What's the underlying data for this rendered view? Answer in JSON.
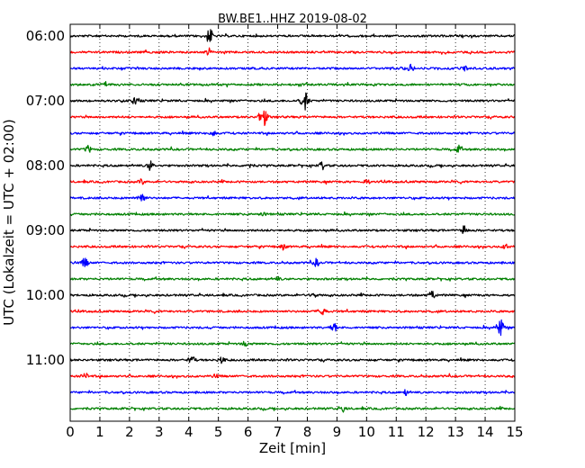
{
  "chart_data": {
    "type": "line",
    "title": "BW.BE1..HHZ 2019-08-02",
    "xlabel": "Zeit  [min]",
    "ylabel": "UTC (Lokalzeit = UTC + 02:00)",
    "xlim": [
      0,
      15
    ],
    "x_ticks": [
      0,
      1,
      2,
      3,
      4,
      5,
      6,
      7,
      8,
      9,
      10,
      11,
      12,
      13,
      14,
      15
    ],
    "y_ticks": [
      "06:00",
      "07:00",
      "08:00",
      "09:00",
      "10:00",
      "11:00"
    ],
    "grid": "vertical-dotted",
    "trace_colors": [
      "#000000",
      "#ff0000",
      "#0000ff",
      "#008000"
    ],
    "traces": [
      {
        "label": "06:00",
        "events": [
          {
            "x": 4.7,
            "amp": 8
          }
        ]
      },
      {
        "label": "06:15",
        "events": [
          {
            "x": 4.7,
            "amp": 4
          }
        ]
      },
      {
        "label": "06:30",
        "events": [
          {
            "x": 11.5,
            "amp": 4
          },
          {
            "x": 13.3,
            "amp": 3
          }
        ]
      },
      {
        "label": "06:45",
        "events": [
          {
            "x": 1.2,
            "amp": 3
          }
        ]
      },
      {
        "label": "07:00",
        "events": [
          {
            "x": 2.2,
            "amp": 6
          },
          {
            "x": 7.9,
            "amp": 10
          }
        ]
      },
      {
        "label": "07:15",
        "events": [
          {
            "x": 6.5,
            "amp": 11
          }
        ]
      },
      {
        "label": "07:30",
        "events": [
          {
            "x": 4.8,
            "amp": 4
          }
        ]
      },
      {
        "label": "07:45",
        "events": [
          {
            "x": 0.6,
            "amp": 4
          },
          {
            "x": 13.1,
            "amp": 4
          }
        ]
      },
      {
        "label": "08:00",
        "events": [
          {
            "x": 2.7,
            "amp": 5
          },
          {
            "x": 6.0,
            "amp": 3
          },
          {
            "x": 8.5,
            "amp": 4
          }
        ]
      },
      {
        "label": "08:15",
        "events": [
          {
            "x": 10.0,
            "amp": 3
          },
          {
            "x": 2.4,
            "amp": 3
          }
        ]
      },
      {
        "label": "08:30",
        "events": [
          {
            "x": 2.4,
            "amp": 7
          }
        ]
      },
      {
        "label": "08:45",
        "events": [
          {
            "x": 6.5,
            "amp": 2
          }
        ]
      },
      {
        "label": "09:00",
        "events": [
          {
            "x": 13.3,
            "amp": 5
          }
        ]
      },
      {
        "label": "09:15",
        "events": [
          {
            "x": 7.2,
            "amp": 3
          },
          {
            "x": 14.7,
            "amp": 3
          }
        ]
      },
      {
        "label": "09:30",
        "events": [
          {
            "x": 0.5,
            "amp": 5
          },
          {
            "x": 8.3,
            "amp": 4
          }
        ]
      },
      {
        "label": "09:45",
        "events": [
          {
            "x": 7.0,
            "amp": 2
          }
        ]
      },
      {
        "label": "10:00",
        "events": [
          {
            "x": 8.2,
            "amp": 3
          },
          {
            "x": 12.2,
            "amp": 5
          }
        ]
      },
      {
        "label": "10:15",
        "events": [
          {
            "x": 8.5,
            "amp": 7
          }
        ]
      },
      {
        "label": "10:30",
        "events": [
          {
            "x": 8.9,
            "amp": 5
          },
          {
            "x": 14.5,
            "amp": 10
          }
        ]
      },
      {
        "label": "10:45",
        "events": [
          {
            "x": 5.9,
            "amp": 3
          }
        ]
      },
      {
        "label": "11:00",
        "events": [
          {
            "x": 4.1,
            "amp": 5
          },
          {
            "x": 5.1,
            "amp": 4
          }
        ]
      },
      {
        "label": "11:15",
        "events": [
          {
            "x": 0.5,
            "amp": 4
          },
          {
            "x": 4.9,
            "amp": 2
          }
        ]
      },
      {
        "label": "11:30",
        "events": [
          {
            "x": 11.3,
            "amp": 3
          }
        ]
      },
      {
        "label": "11:45",
        "events": [
          {
            "x": 9.2,
            "amp": 3
          }
        ]
      }
    ]
  }
}
